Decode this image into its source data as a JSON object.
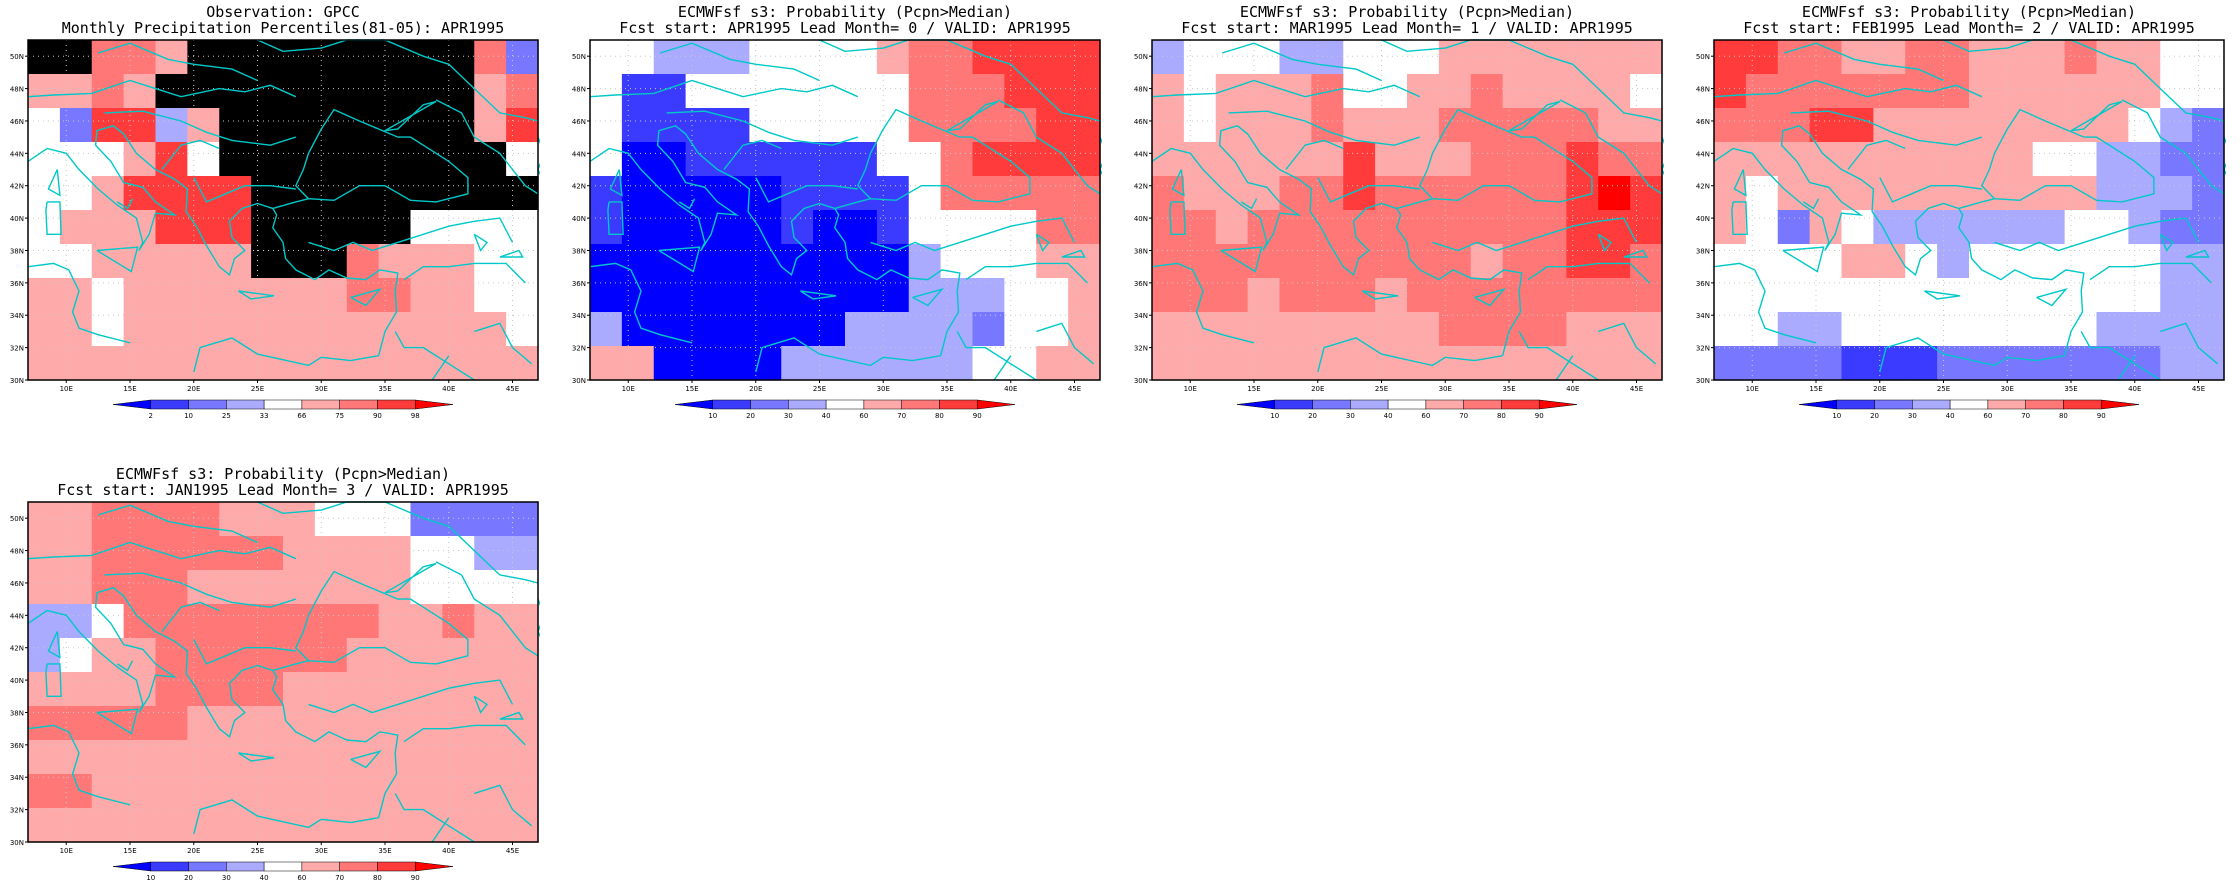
{
  "panels": [
    {
      "title1": "Observation: GPCC",
      "title2": "Monthly Precipitation Percentiles(81-05): APR1995",
      "colorbar": {
        "labels": [
          "2",
          "10",
          "25",
          "33",
          "66",
          "75",
          "90",
          "98"
        ],
        "colors": [
          "#0000ff",
          "#3b3bff",
          "#7777ff",
          "#aaaaff",
          "#ffffff",
          "#ffaaaa",
          "#ff7777",
          "#ff3b3b",
          "#ff0000"
        ]
      },
      "grid": [
        "FF665FFFFFFFFF62",
        "5565FFFFFFFFFF56",
        "427735FFFFFFFF57",
        "444574FFFFFFFFF4",
        "4457777FFFFFFFFF",
        "4555777FFFFF4444",
        "4455555FFF655544",
        "5545555555665544",
        "5545555555555554",
        "5555555555555555"
      ],
      "credit": "GrADS: COLA/IGES"
    },
    {
      "title1": "ECMWFsf s3: Probability (Pcpn>Median)",
      "title2": "Fcst start: APR1995  Lead Month= 0 / VALID: APR1995",
      "colorbar": {
        "labels": [
          "10",
          "20",
          "30",
          "40",
          "60",
          "70",
          "80",
          "90"
        ],
        "colors": [
          "#0000ff",
          "#3b3bff",
          "#7777ff",
          "#aaaaff",
          "#ffffff",
          "#ffaaaa",
          "#ff7777",
          "#ff3b3b",
          "#ff0000"
        ]
      },
      "grid": [
        "4433344445667777",
        "4114444444666777",
        "4111144444666677",
        "4001111114467777",
        "1000001111466666",
        "1000001001444466",
        "0000000000344455",
        "0000000000333445",
        "3000000033332445",
        "5500003333334455"
      ],
      "credit": "GrADS: COLA/IGES"
    },
    {
      "title1": "ECMWFsf s3: Probability (Pcpn>Median)",
      "title2": "Fcst start: MAR1995  Lead Month= 1 / VALID: APR1995",
      "colorbar": {
        "labels": [
          "10",
          "20",
          "30",
          "40",
          "60",
          "70",
          "80",
          "90"
        ],
        "colors": [
          "#0000ff",
          "#3b3bff",
          "#7777ff",
          "#aaaaff",
          "#ffffff",
          "#ffaaaa",
          "#ff7777",
          "#ff3b3b",
          "#ff0000"
        ]
      },
      "grid": [
        "3444334445555555",
        "5455564455655554",
        "5455565556666655",
        "5555557555666766",
        "6555667666666787",
        "6656666666666777",
        "6666666666566776",
        "6665666566666666",
        "5555555556666555",
        "5555555555555555"
      ],
      "credit": "GrADS: COLA/IGES"
    },
    {
      "title1": "ECMWFsf s3: Probability (Pcpn>Median)",
      "title2": "Fcst start: FEB1995  Lead Month= 2 / VALID: APR1995",
      "colorbar": {
        "labels": [
          "10",
          "20",
          "30",
          "40",
          "60",
          "70",
          "80",
          "90"
        ],
        "colors": [
          "#0000ff",
          "#3b3bff",
          "#7777ff",
          "#aaaaff",
          "#ffffff",
          "#ffaaaa",
          "#ff7777",
          "#ff3b3b",
          "#ff0000"
        ]
      },
      "grid": [
        "7766556655565544",
        "7666666655555544",
        "6667755555555432",
        "5555555555443322",
        "5455555555553332",
        "5425433333344322",
        "4444554344444433",
        "4444444444444433",
        "4433444444443333",
        "2222111222222233"
      ],
      "credit": "GrADS: COLA/IGES"
    },
    {
      "title1": "ECMWFsf s3: Probability (Pcpn>Median)",
      "title2": "Fcst start: JAN1995  Lead Month= 3 / VALID: APR1995",
      "colorbar": {
        "labels": [
          "10",
          "20",
          "30",
          "40",
          "60",
          "70",
          "80",
          "90"
        ],
        "colors": [
          "#0000ff",
          "#3b3bff",
          "#7777ff",
          "#aaaaff",
          "#ffffff",
          "#ffaaaa",
          "#ff7777",
          "#ff3b3b",
          "#ff0000"
        ]
      },
      "grid": [
        "5566665554442222",
        "5566666655554433",
        "5566655555554444",
        "3346666666655655",
        "3455666666555555",
        "5555666655555555",
        "6666655555555555",
        "5555555555555555",
        "6655555555555555",
        "5555555555555555"
      ],
      "credit": "GrADS: COLA/IGES"
    }
  ],
  "map": {
    "lat_labels": [
      "50N",
      "48N",
      "46N",
      "44N",
      "42N",
      "40N",
      "38N",
      "36N",
      "34N",
      "32N",
      "30N"
    ],
    "lon_labels": [
      "10E",
      "15E",
      "20E",
      "25E",
      "30E",
      "35E",
      "40E",
      "45E"
    ],
    "lon_range": [
      7,
      47
    ],
    "lat_range": [
      30,
      51
    ],
    "coast_color": "#00c8c8",
    "grid_line_color": "#c8c8c8"
  }
}
